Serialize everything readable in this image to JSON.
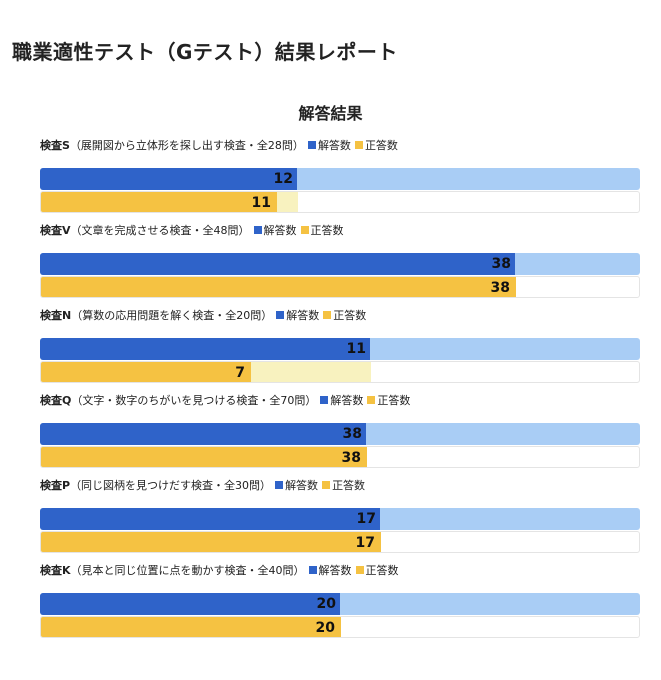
{
  "page": {
    "title": "職業適性テスト（Gテスト）結果レポート"
  },
  "chart_data": {
    "type": "bar",
    "title": "解答結果",
    "colors": {
      "answered": "#2f63c9",
      "answered_track": "#a9cdf5",
      "correct": "#f5c242",
      "correct_ghost": "#f8f2bf"
    },
    "groups": [
      {
        "name": "検査S",
        "description": "（展開図から立体形を探し出す検査・全28問）",
        "total": 28,
        "answered": 12,
        "correct": 11,
        "legend": {
          "answered": "解答数",
          "correct": "正答数"
        }
      },
      {
        "name": "検査V",
        "description": "（文章を完成させる検査・全48問）",
        "total": 48,
        "answered": 38,
        "correct": 38,
        "legend": {
          "answered": "解答数",
          "correct": "正答数"
        }
      },
      {
        "name": "検査N",
        "description": "（算数の応用問題を解く検査・全20問）",
        "total": 20,
        "answered": 11,
        "correct": 7,
        "legend": {
          "answered": "解答数",
          "correct": "正答数"
        }
      },
      {
        "name": "検査Q",
        "description": "（文字・数字のちがいを見つける検査・全70問）",
        "total": 70,
        "answered": 38,
        "correct": 38,
        "legend": {
          "answered": "解答数",
          "correct": "正答数"
        }
      },
      {
        "name": "検査P",
        "description": "（同じ図柄を見つけだす検査・全30問）",
        "total": 30,
        "answered": 17,
        "correct": 17,
        "legend": {
          "answered": "解答数",
          "correct": "正答数"
        }
      },
      {
        "name": "検査K",
        "description": "（見本と同じ位置に点を動かす検査・全40問）",
        "total": 40,
        "answered": 20,
        "correct": 20,
        "legend": {
          "answered": "解答数",
          "correct": "正答数"
        }
      }
    ]
  }
}
